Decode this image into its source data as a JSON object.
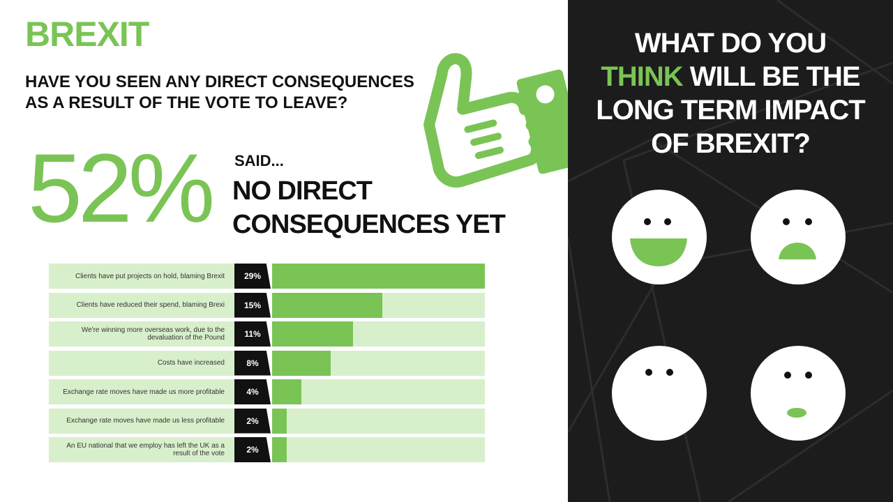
{
  "brand": "BREXIT",
  "question": "HAVE YOU SEEN ANY DIRECT CONSEQUENCES AS A RESULT OF THE VOTE TO LEAVE?",
  "stat": {
    "value": "52%",
    "said": "SAID...",
    "headline_line1": "NO DIRECT",
    "headline_line2": "CONSEQUENCES YET"
  },
  "right_panel": {
    "q_line1": "WHAT DO YOU",
    "q_accent": "THINK",
    "q_line2_rest": "WILL BE THE",
    "q_line3": "LONG TERM IMPACT",
    "q_line4": "OF BREXIT?"
  },
  "faces": [
    "happy-face-icon",
    "sad-face-icon",
    "neutral-face-icon",
    "surprised-face-icon"
  ],
  "colors": {
    "accent": "#7ac456",
    "light_accent": "#d8efcb",
    "dark": "#1c1c1c"
  },
  "chart_data": {
    "type": "bar",
    "orientation": "horizontal",
    "categories": [
      "Clients have put projects on hold, blaming Brexit",
      "Clients have reduced their spend, blaming Brexi",
      "We're winning more overseas work, due to the devaluation of the Pound",
      "Costs have increased",
      "Exchange rate moves have made us more profitable",
      "Exchange rate moves have made us less profitable",
      "An EU national that we employ has left the UK as a result of the vote"
    ],
    "values": [
      29,
      15,
      11,
      8,
      4,
      2,
      2
    ],
    "value_labels": [
      "29%",
      "15%",
      "11%",
      "8%",
      "4%",
      "2%",
      "2%"
    ],
    "xlim": [
      0,
      29
    ],
    "unit": "%"
  }
}
